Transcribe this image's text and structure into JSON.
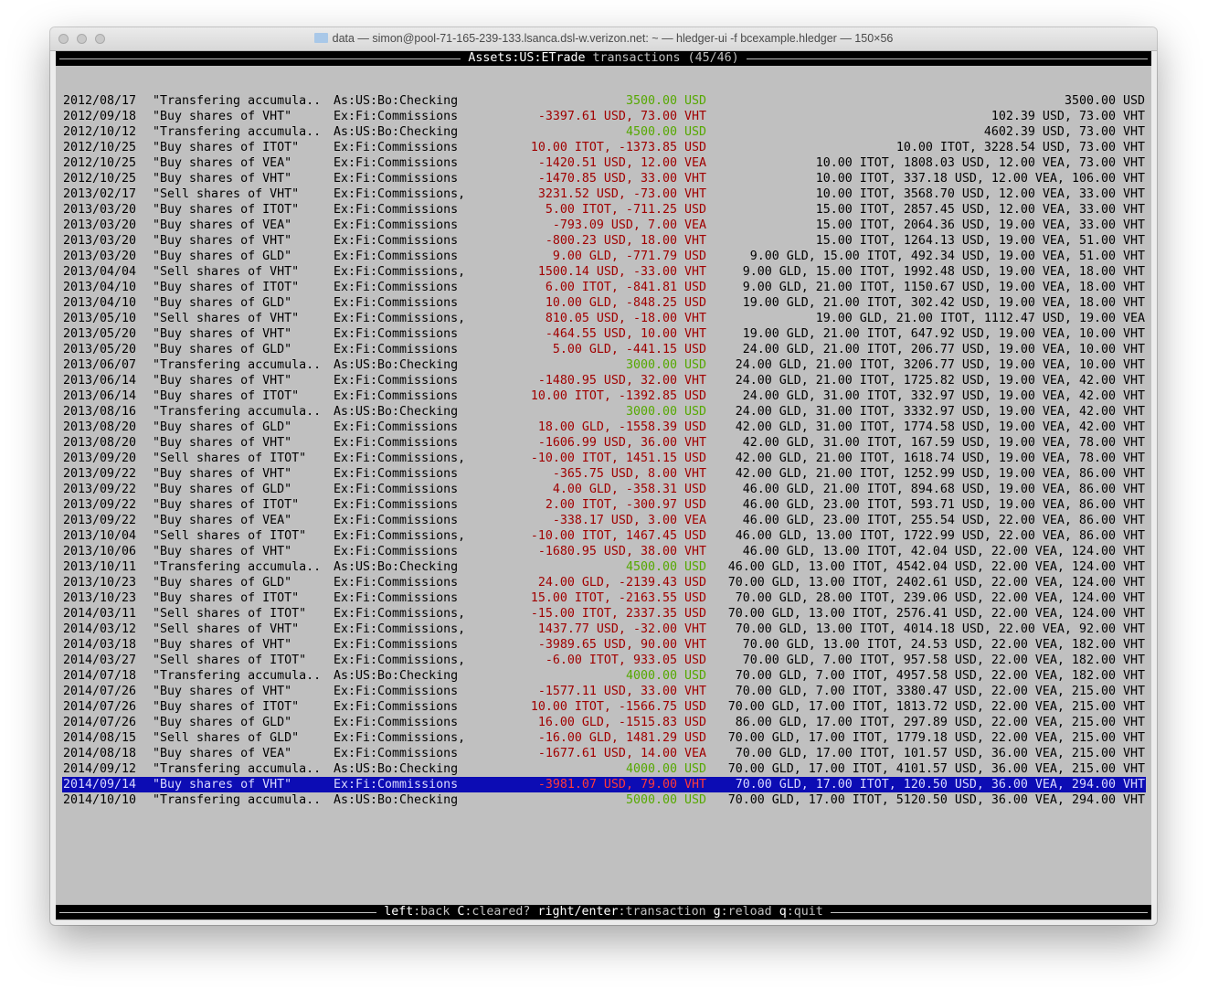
{
  "window": {
    "title": "data — simon@pool-71-165-239-133.lsanca.dsl-w.verizon.net: ~ — hledger-ui -f bcexample.hledger — 150×56"
  },
  "header": {
    "account": "Assets:US:ETrade",
    "suffix": " transactions (45/46)"
  },
  "selected_index": 44,
  "colors": {
    "background": "#c0c0c0",
    "negative_change": "#a00000",
    "positive_change": "#55a800",
    "selection": "#0c0cb4"
  },
  "rows": [
    {
      "date": "2012/08/17",
      "desc": "\"Transfering accumula..",
      "account": "As:US:Bo:Checking",
      "change": "3500.00 USD",
      "balance": "3500.00 USD",
      "positive": true
    },
    {
      "date": "2012/09/18",
      "desc": "\"Buy shares of VHT\"",
      "account": "Ex:Fi:Commissions",
      "change": "-3397.61 USD, 73.00 VHT",
      "balance": "102.39 USD, 73.00 VHT"
    },
    {
      "date": "2012/10/12",
      "desc": "\"Transfering accumula..",
      "account": "As:US:Bo:Checking",
      "change": "4500.00 USD",
      "balance": "4602.39 USD, 73.00 VHT",
      "positive": true
    },
    {
      "date": "2012/10/25",
      "desc": "\"Buy shares of ITOT\"",
      "account": "Ex:Fi:Commissions",
      "change": "10.00 ITOT, -1373.85 USD",
      "balance": "10.00 ITOT, 3228.54 USD, 73.00 VHT"
    },
    {
      "date": "2012/10/25",
      "desc": "\"Buy shares of VEA\"",
      "account": "Ex:Fi:Commissions",
      "change": "-1420.51 USD, 12.00 VEA",
      "balance": "10.00 ITOT, 1808.03 USD, 12.00 VEA, 73.00 VHT"
    },
    {
      "date": "2012/10/25",
      "desc": "\"Buy shares of VHT\"",
      "account": "Ex:Fi:Commissions",
      "change": "-1470.85 USD, 33.00 VHT",
      "balance": "10.00 ITOT, 337.18 USD, 12.00 VEA, 106.00 VHT"
    },
    {
      "date": "2013/02/17",
      "desc": "\"Sell shares of VHT\"",
      "account": "Ex:Fi:Commissions, In:..",
      "change": "3231.52 USD, -73.00 VHT",
      "balance": "10.00 ITOT, 3568.70 USD, 12.00 VEA, 33.00 VHT"
    },
    {
      "date": "2013/03/20",
      "desc": "\"Buy shares of ITOT\"",
      "account": "Ex:Fi:Commissions",
      "change": "5.00 ITOT, -711.25 USD",
      "balance": "15.00 ITOT, 2857.45 USD, 12.00 VEA, 33.00 VHT"
    },
    {
      "date": "2013/03/20",
      "desc": "\"Buy shares of VEA\"",
      "account": "Ex:Fi:Commissions",
      "change": "-793.09 USD, 7.00 VEA",
      "balance": "15.00 ITOT, 2064.36 USD, 19.00 VEA, 33.00 VHT"
    },
    {
      "date": "2013/03/20",
      "desc": "\"Buy shares of VHT\"",
      "account": "Ex:Fi:Commissions",
      "change": "-800.23 USD, 18.00 VHT",
      "balance": "15.00 ITOT, 1264.13 USD, 19.00 VEA, 51.00 VHT"
    },
    {
      "date": "2013/03/20",
      "desc": "\"Buy shares of GLD\"",
      "account": "Ex:Fi:Commissions",
      "change": "9.00 GLD, -771.79 USD",
      "balance": "9.00 GLD, 15.00 ITOT, 492.34 USD, 19.00 VEA, 51.00 VHT"
    },
    {
      "date": "2013/04/04",
      "desc": "\"Sell shares of VHT\"",
      "account": "Ex:Fi:Commissions, In:..",
      "change": "1500.14 USD, -33.00 VHT",
      "balance": "9.00 GLD, 15.00 ITOT, 1992.48 USD, 19.00 VEA, 18.00 VHT"
    },
    {
      "date": "2013/04/10",
      "desc": "\"Buy shares of ITOT\"",
      "account": "Ex:Fi:Commissions",
      "change": "6.00 ITOT, -841.81 USD",
      "balance": "9.00 GLD, 21.00 ITOT, 1150.67 USD, 19.00 VEA, 18.00 VHT"
    },
    {
      "date": "2013/04/10",
      "desc": "\"Buy shares of GLD\"",
      "account": "Ex:Fi:Commissions",
      "change": "10.00 GLD, -848.25 USD",
      "balance": "19.00 GLD, 21.00 ITOT, 302.42 USD, 19.00 VEA, 18.00 VHT"
    },
    {
      "date": "2013/05/10",
      "desc": "\"Sell shares of VHT\"",
      "account": "Ex:Fi:Commissions, In:..",
      "change": "810.05 USD, -18.00 VHT",
      "balance": "19.00 GLD, 21.00 ITOT, 1112.47 USD, 19.00 VEA"
    },
    {
      "date": "2013/05/20",
      "desc": "\"Buy shares of VHT\"",
      "account": "Ex:Fi:Commissions",
      "change": "-464.55 USD, 10.00 VHT",
      "balance": "19.00 GLD, 21.00 ITOT, 647.92 USD, 19.00 VEA, 10.00 VHT"
    },
    {
      "date": "2013/05/20",
      "desc": "\"Buy shares of GLD\"",
      "account": "Ex:Fi:Commissions",
      "change": "5.00 GLD, -441.15 USD",
      "balance": "24.00 GLD, 21.00 ITOT, 206.77 USD, 19.00 VEA, 10.00 VHT"
    },
    {
      "date": "2013/06/07",
      "desc": "\"Transfering accumula..",
      "account": "As:US:Bo:Checking",
      "change": "3000.00 USD",
      "balance": "24.00 GLD, 21.00 ITOT, 3206.77 USD, 19.00 VEA, 10.00 VHT",
      "positive": true
    },
    {
      "date": "2013/06/14",
      "desc": "\"Buy shares of VHT\"",
      "account": "Ex:Fi:Commissions",
      "change": "-1480.95 USD, 32.00 VHT",
      "balance": "24.00 GLD, 21.00 ITOT, 1725.82 USD, 19.00 VEA, 42.00 VHT"
    },
    {
      "date": "2013/06/14",
      "desc": "\"Buy shares of ITOT\"",
      "account": "Ex:Fi:Commissions",
      "change": "10.00 ITOT, -1392.85 USD",
      "balance": "24.00 GLD, 31.00 ITOT, 332.97 USD, 19.00 VEA, 42.00 VHT"
    },
    {
      "date": "2013/08/16",
      "desc": "\"Transfering accumula..",
      "account": "As:US:Bo:Checking",
      "change": "3000.00 USD",
      "balance": "24.00 GLD, 31.00 ITOT, 3332.97 USD, 19.00 VEA, 42.00 VHT",
      "positive": true
    },
    {
      "date": "2013/08/20",
      "desc": "\"Buy shares of GLD\"",
      "account": "Ex:Fi:Commissions",
      "change": "18.00 GLD, -1558.39 USD",
      "balance": "42.00 GLD, 31.00 ITOT, 1774.58 USD, 19.00 VEA, 42.00 VHT"
    },
    {
      "date": "2013/08/20",
      "desc": "\"Buy shares of VHT\"",
      "account": "Ex:Fi:Commissions",
      "change": "-1606.99 USD, 36.00 VHT",
      "balance": "42.00 GLD, 31.00 ITOT, 167.59 USD, 19.00 VEA, 78.00 VHT"
    },
    {
      "date": "2013/09/20",
      "desc": "\"Sell shares of ITOT\"",
      "account": "Ex:Fi:Commissions, In:..",
      "change": "-10.00 ITOT, 1451.15 USD",
      "balance": "42.00 GLD, 21.00 ITOT, 1618.74 USD, 19.00 VEA, 78.00 VHT"
    },
    {
      "date": "2013/09/22",
      "desc": "\"Buy shares of VHT\"",
      "account": "Ex:Fi:Commissions",
      "change": "-365.75 USD, 8.00 VHT",
      "balance": "42.00 GLD, 21.00 ITOT, 1252.99 USD, 19.00 VEA, 86.00 VHT"
    },
    {
      "date": "2013/09/22",
      "desc": "\"Buy shares of GLD\"",
      "account": "Ex:Fi:Commissions",
      "change": "4.00 GLD, -358.31 USD",
      "balance": "46.00 GLD, 21.00 ITOT, 894.68 USD, 19.00 VEA, 86.00 VHT"
    },
    {
      "date": "2013/09/22",
      "desc": "\"Buy shares of ITOT\"",
      "account": "Ex:Fi:Commissions",
      "change": "2.00 ITOT, -300.97 USD",
      "balance": "46.00 GLD, 23.00 ITOT, 593.71 USD, 19.00 VEA, 86.00 VHT"
    },
    {
      "date": "2013/09/22",
      "desc": "\"Buy shares of VEA\"",
      "account": "Ex:Fi:Commissions",
      "change": "-338.17 USD, 3.00 VEA",
      "balance": "46.00 GLD, 23.00 ITOT, 255.54 USD, 22.00 VEA, 86.00 VHT"
    },
    {
      "date": "2013/10/04",
      "desc": "\"Sell shares of ITOT\"",
      "account": "Ex:Fi:Commissions, In:..",
      "change": "-10.00 ITOT, 1467.45 USD",
      "balance": "46.00 GLD, 13.00 ITOT, 1722.99 USD, 22.00 VEA, 86.00 VHT"
    },
    {
      "date": "2013/10/06",
      "desc": "\"Buy shares of VHT\"",
      "account": "Ex:Fi:Commissions",
      "change": "-1680.95 USD, 38.00 VHT",
      "balance": "46.00 GLD, 13.00 ITOT, 42.04 USD, 22.00 VEA, 124.00 VHT"
    },
    {
      "date": "2013/10/11",
      "desc": "\"Transfering accumula..",
      "account": "As:US:Bo:Checking",
      "change": "4500.00 USD",
      "balance": "46.00 GLD, 13.00 ITOT, 4542.04 USD, 22.00 VEA, 124.00 VHT",
      "positive": true
    },
    {
      "date": "2013/10/23",
      "desc": "\"Buy shares of GLD\"",
      "account": "Ex:Fi:Commissions",
      "change": "24.00 GLD, -2139.43 USD",
      "balance": "70.00 GLD, 13.00 ITOT, 2402.61 USD, 22.00 VEA, 124.00 VHT"
    },
    {
      "date": "2013/10/23",
      "desc": "\"Buy shares of ITOT\"",
      "account": "Ex:Fi:Commissions",
      "change": "15.00 ITOT, -2163.55 USD",
      "balance": "70.00 GLD, 28.00 ITOT, 239.06 USD, 22.00 VEA, 124.00 VHT"
    },
    {
      "date": "2014/03/11",
      "desc": "\"Sell shares of ITOT\"",
      "account": "Ex:Fi:Commissions, In:..",
      "change": "-15.00 ITOT, 2337.35 USD",
      "balance": "70.00 GLD, 13.00 ITOT, 2576.41 USD, 22.00 VEA, 124.00 VHT"
    },
    {
      "date": "2014/03/12",
      "desc": "\"Sell shares of VHT\"",
      "account": "Ex:Fi:Commissions, In:..",
      "change": "1437.77 USD, -32.00 VHT",
      "balance": "70.00 GLD, 13.00 ITOT, 4014.18 USD, 22.00 VEA, 92.00 VHT"
    },
    {
      "date": "2014/03/18",
      "desc": "\"Buy shares of VHT\"",
      "account": "Ex:Fi:Commissions",
      "change": "-3989.65 USD, 90.00 VHT",
      "balance": "70.00 GLD, 13.00 ITOT, 24.53 USD, 22.00 VEA, 182.00 VHT"
    },
    {
      "date": "2014/03/27",
      "desc": "\"Sell shares of ITOT\"",
      "account": "Ex:Fi:Commissions, In:..",
      "change": "-6.00 ITOT, 933.05 USD",
      "balance": "70.00 GLD, 7.00 ITOT, 957.58 USD, 22.00 VEA, 182.00 VHT"
    },
    {
      "date": "2014/07/18",
      "desc": "\"Transfering accumula..",
      "account": "As:US:Bo:Checking",
      "change": "4000.00 USD",
      "balance": "70.00 GLD, 7.00 ITOT, 4957.58 USD, 22.00 VEA, 182.00 VHT",
      "positive": true
    },
    {
      "date": "2014/07/26",
      "desc": "\"Buy shares of VHT\"",
      "account": "Ex:Fi:Commissions",
      "change": "-1577.11 USD, 33.00 VHT",
      "balance": "70.00 GLD, 7.00 ITOT, 3380.47 USD, 22.00 VEA, 215.00 VHT"
    },
    {
      "date": "2014/07/26",
      "desc": "\"Buy shares of ITOT\"",
      "account": "Ex:Fi:Commissions",
      "change": "10.00 ITOT, -1566.75 USD",
      "balance": "70.00 GLD, 17.00 ITOT, 1813.72 USD, 22.00 VEA, 215.00 VHT"
    },
    {
      "date": "2014/07/26",
      "desc": "\"Buy shares of GLD\"",
      "account": "Ex:Fi:Commissions",
      "change": "16.00 GLD, -1515.83 USD",
      "balance": "86.00 GLD, 17.00 ITOT, 297.89 USD, 22.00 VEA, 215.00 VHT"
    },
    {
      "date": "2014/08/15",
      "desc": "\"Sell shares of GLD\"",
      "account": "Ex:Fi:Commissions, In:..",
      "change": "-16.00 GLD, 1481.29 USD",
      "balance": "70.00 GLD, 17.00 ITOT, 1779.18 USD, 22.00 VEA, 215.00 VHT"
    },
    {
      "date": "2014/08/18",
      "desc": "\"Buy shares of VEA\"",
      "account": "Ex:Fi:Commissions",
      "change": "-1677.61 USD, 14.00 VEA",
      "balance": "70.00 GLD, 17.00 ITOT, 101.57 USD, 36.00 VEA, 215.00 VHT"
    },
    {
      "date": "2014/09/12",
      "desc": "\"Transfering accumula..",
      "account": "As:US:Bo:Checking",
      "change": "4000.00 USD",
      "balance": "70.00 GLD, 17.00 ITOT, 4101.57 USD, 36.00 VEA, 215.00 VHT",
      "positive": true
    },
    {
      "date": "2014/09/14",
      "desc": "\"Buy shares of VHT\"",
      "account": "Ex:Fi:Commissions",
      "change": "-3981.07 USD, 79.00 VHT",
      "balance": "70.00 GLD, 17.00 ITOT, 120.50 USD, 36.00 VEA, 294.00 VHT"
    },
    {
      "date": "2014/10/10",
      "desc": "\"Transfering accumula..",
      "account": "As:US:Bo:Checking",
      "change": "5000.00 USD",
      "balance": "70.00 GLD, 17.00 ITOT, 5120.50 USD, 36.00 VEA, 294.00 VHT",
      "positive": true
    }
  ],
  "footer": {
    "keys": [
      {
        "key": "left",
        "action": "back"
      },
      {
        "key": "C",
        "action": "cleared?"
      },
      {
        "key": "right/enter",
        "action": "transaction"
      },
      {
        "key": "g",
        "action": "reload"
      },
      {
        "key": "q",
        "action": "quit"
      }
    ]
  }
}
